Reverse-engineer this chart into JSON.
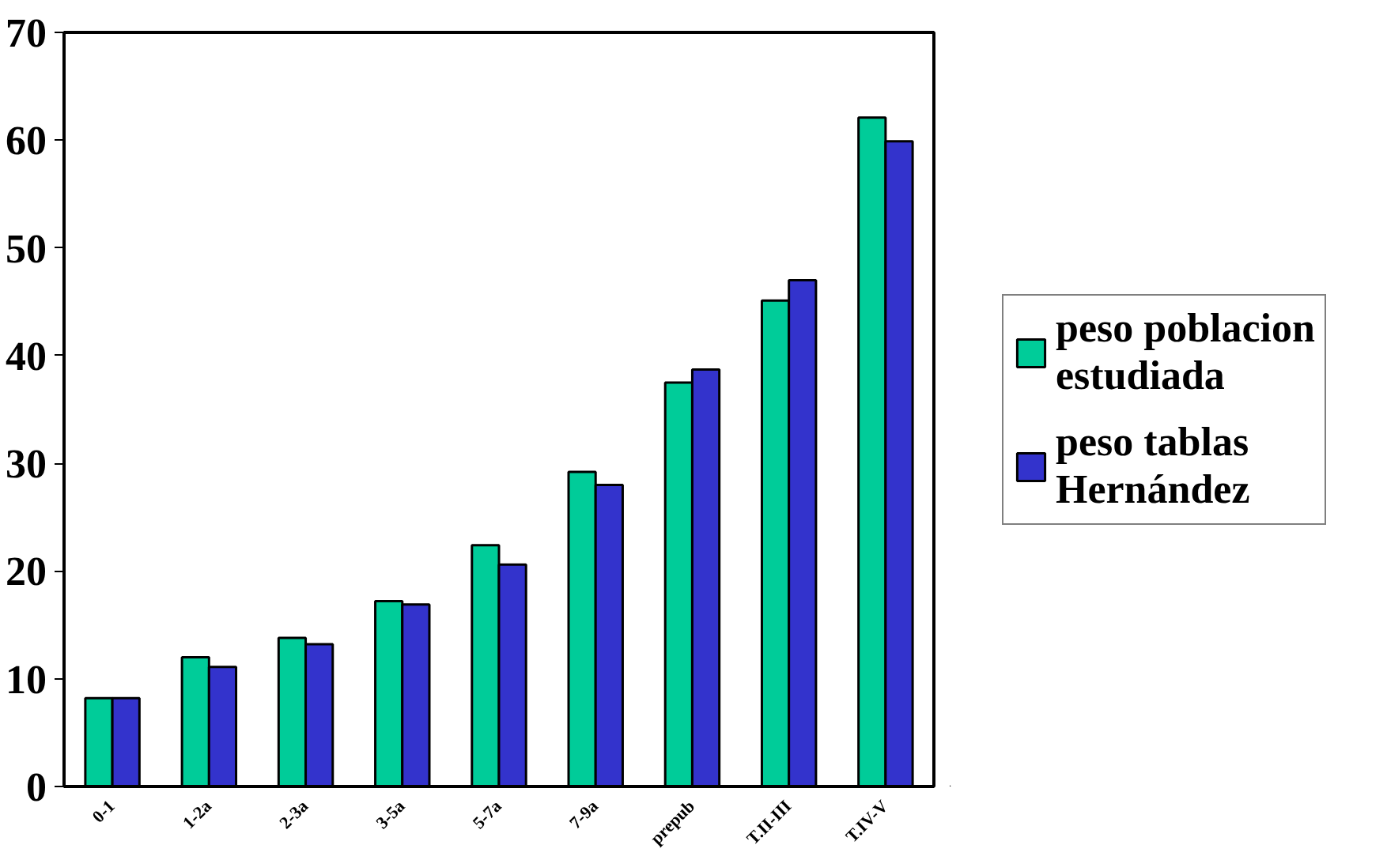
{
  "chart_data": {
    "type": "bar",
    "categories": [
      "0-1",
      "1-2a",
      "2-3a",
      "3-5a",
      "5-7a",
      "7-9a",
      "prepub",
      "T.II-III",
      "T.IV-V"
    ],
    "series": [
      {
        "name": "peso poblacion estudiada",
        "color": "#00cc99",
        "values": [
          8.2,
          12.0,
          13.8,
          17.2,
          22.4,
          29.2,
          37.5,
          45.1,
          62.1
        ]
      },
      {
        "name": "peso tablas Hernández",
        "color": "#3333cc",
        "values": [
          8.2,
          11.1,
          13.2,
          16.9,
          20.6,
          28.0,
          38.7,
          47.0,
          59.9
        ]
      }
    ],
    "ylim": [
      0,
      70
    ],
    "yticks": [
      0,
      10,
      20,
      30,
      40,
      50,
      60,
      70
    ],
    "grid": false,
    "legend": "right"
  }
}
